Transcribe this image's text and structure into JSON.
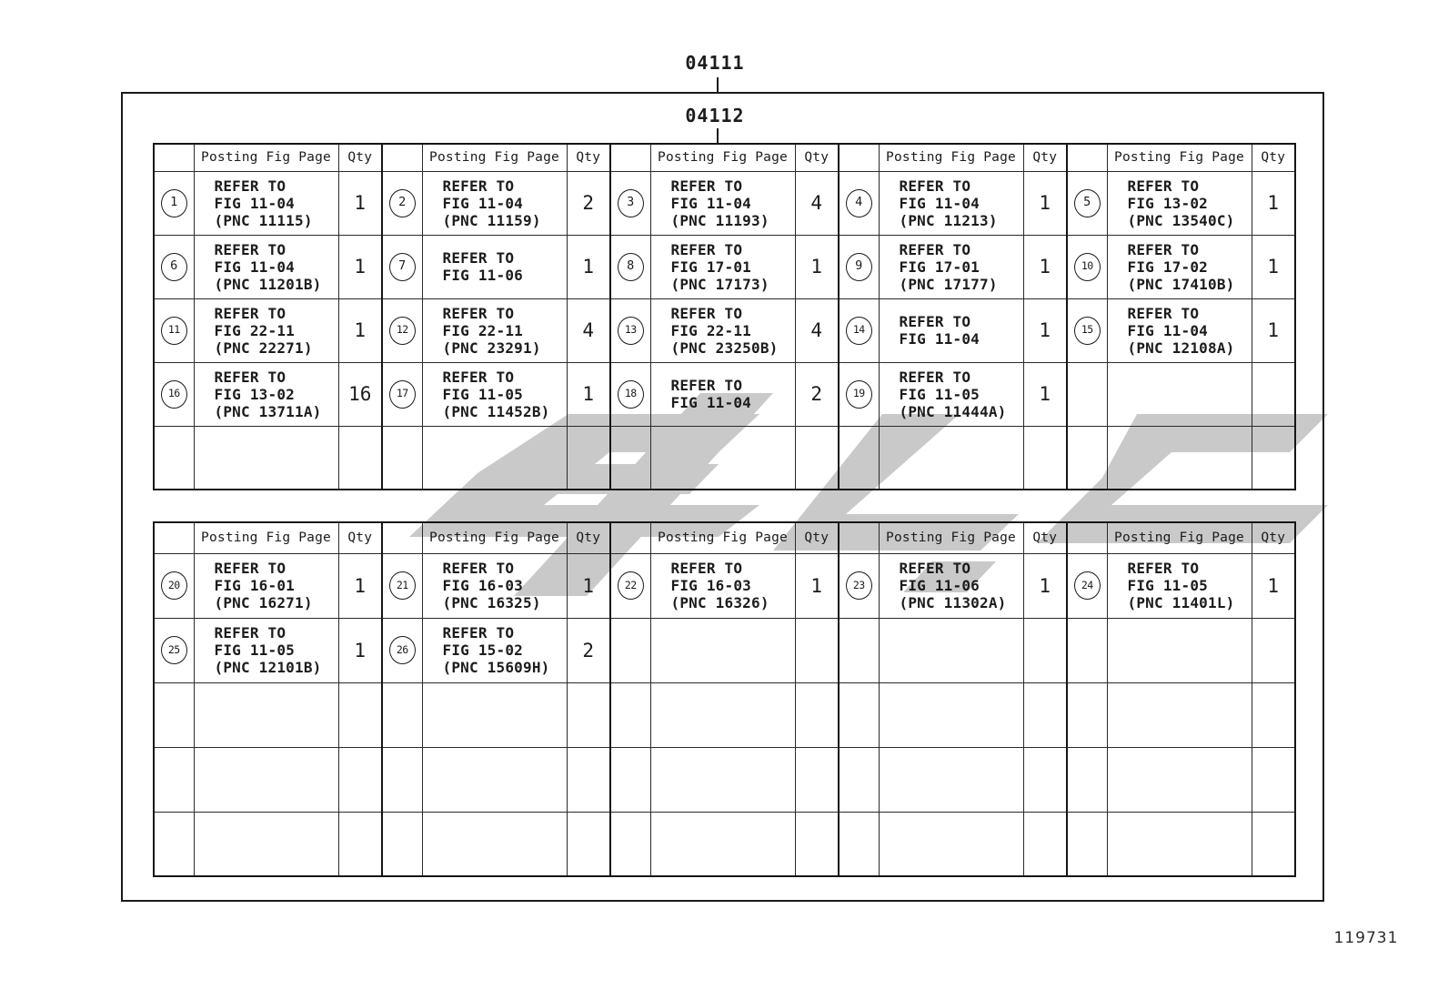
{
  "page": {
    "top_label": "04111",
    "inner_label": "04112",
    "footer_code": "119731"
  },
  "headers": {
    "posting": "Posting Fig Page",
    "qty": "Qty"
  },
  "colors": {
    "line": "#1a1a1a",
    "watermark": "#c9c9c9"
  },
  "tables": [
    {
      "id": "upper",
      "rows": [
        [
          {
            "num": "1",
            "fig": [
              "REFER TO",
              "FIG 11-04",
              "(PNC 11115)"
            ],
            "qty": "1"
          },
          {
            "num": "2",
            "fig": [
              "REFER TO",
              "FIG 11-04",
              "(PNC 11159)"
            ],
            "qty": "2"
          },
          {
            "num": "3",
            "fig": [
              "REFER TO",
              "FIG 11-04",
              "(PNC 11193)"
            ],
            "qty": "4"
          },
          {
            "num": "4",
            "fig": [
              "REFER TO",
              "FIG 11-04",
              "(PNC 11213)"
            ],
            "qty": "1"
          },
          {
            "num": "5",
            "fig": [
              "REFER TO",
              "FIG 13-02",
              "(PNC 13540C)"
            ],
            "qty": "1"
          }
        ],
        [
          {
            "num": "6",
            "fig": [
              "REFER TO",
              "FIG 11-04",
              "(PNC 11201B)"
            ],
            "qty": "1"
          },
          {
            "num": "7",
            "fig": [
              "REFER TO",
              "FIG 11-06"
            ],
            "qty": "1"
          },
          {
            "num": "8",
            "fig": [
              "REFER TO",
              "FIG 17-01",
              "(PNC 17173)"
            ],
            "qty": "1"
          },
          {
            "num": "9",
            "fig": [
              "REFER TO",
              "FIG 17-01",
              "(PNC 17177)"
            ],
            "qty": "1"
          },
          {
            "num": "10",
            "fig": [
              "REFER TO",
              "FIG 17-02",
              "(PNC 17410B)"
            ],
            "qty": "1"
          }
        ],
        [
          {
            "num": "11",
            "fig": [
              "REFER TO",
              "FIG 22-11",
              "(PNC 22271)"
            ],
            "qty": "1"
          },
          {
            "num": "12",
            "fig": [
              "REFER TO",
              "FIG 22-11",
              "(PNC 23291)"
            ],
            "qty": "4"
          },
          {
            "num": "13",
            "fig": [
              "REFER TO",
              "FIG 22-11",
              "(PNC 23250B)"
            ],
            "qty": "4"
          },
          {
            "num": "14",
            "fig": [
              "REFER TO",
              "FIG 11-04"
            ],
            "qty": "1"
          },
          {
            "num": "15",
            "fig": [
              "REFER TO",
              "FIG 11-04",
              "(PNC 12108A)"
            ],
            "qty": "1"
          }
        ],
        [
          {
            "num": "16",
            "fig": [
              "REFER TO",
              "FIG 13-02",
              "(PNC 13711A)"
            ],
            "qty": "16"
          },
          {
            "num": "17",
            "fig": [
              "REFER TO",
              "FIG 11-05",
              "(PNC 11452B)"
            ],
            "qty": "1"
          },
          {
            "num": "18",
            "fig": [
              "REFER TO",
              "FIG 11-04"
            ],
            "qty": "2"
          },
          {
            "num": "19",
            "fig": [
              "REFER TO",
              "FIG 11-05",
              "(PNC 11444A)"
            ],
            "qty": "1"
          },
          null
        ],
        [
          null,
          null,
          null,
          null,
          null
        ]
      ]
    },
    {
      "id": "lower",
      "rows": [
        [
          {
            "num": "20",
            "fig": [
              "REFER TO",
              "FIG 16-01",
              "(PNC 16271)"
            ],
            "qty": "1"
          },
          {
            "num": "21",
            "fig": [
              "REFER TO",
              "FIG 16-03",
              "(PNC 16325)"
            ],
            "qty": "1"
          },
          {
            "num": "22",
            "fig": [
              "REFER TO",
              "FIG 16-03",
              "(PNC 16326)"
            ],
            "qty": "1"
          },
          {
            "num": "23",
            "fig": [
              "REFER TO",
              "FIG 11-06",
              "(PNC 11302A)"
            ],
            "qty": "1"
          },
          {
            "num": "24",
            "fig": [
              "REFER TO",
              "FIG 11-05",
              "(PNC 11401L)"
            ],
            "qty": "1"
          }
        ],
        [
          {
            "num": "25",
            "fig": [
              "REFER TO",
              "FIG 11-05",
              "(PNC 12101B)"
            ],
            "qty": "1"
          },
          {
            "num": "26",
            "fig": [
              "REFER TO",
              "FIG 15-02",
              "(PNC 15609H)"
            ],
            "qty": "2"
          },
          null,
          null,
          null
        ],
        [
          null,
          null,
          null,
          null,
          null
        ],
        [
          null,
          null,
          null,
          null,
          null
        ],
        [
          null,
          null,
          null,
          null,
          null
        ]
      ]
    }
  ]
}
